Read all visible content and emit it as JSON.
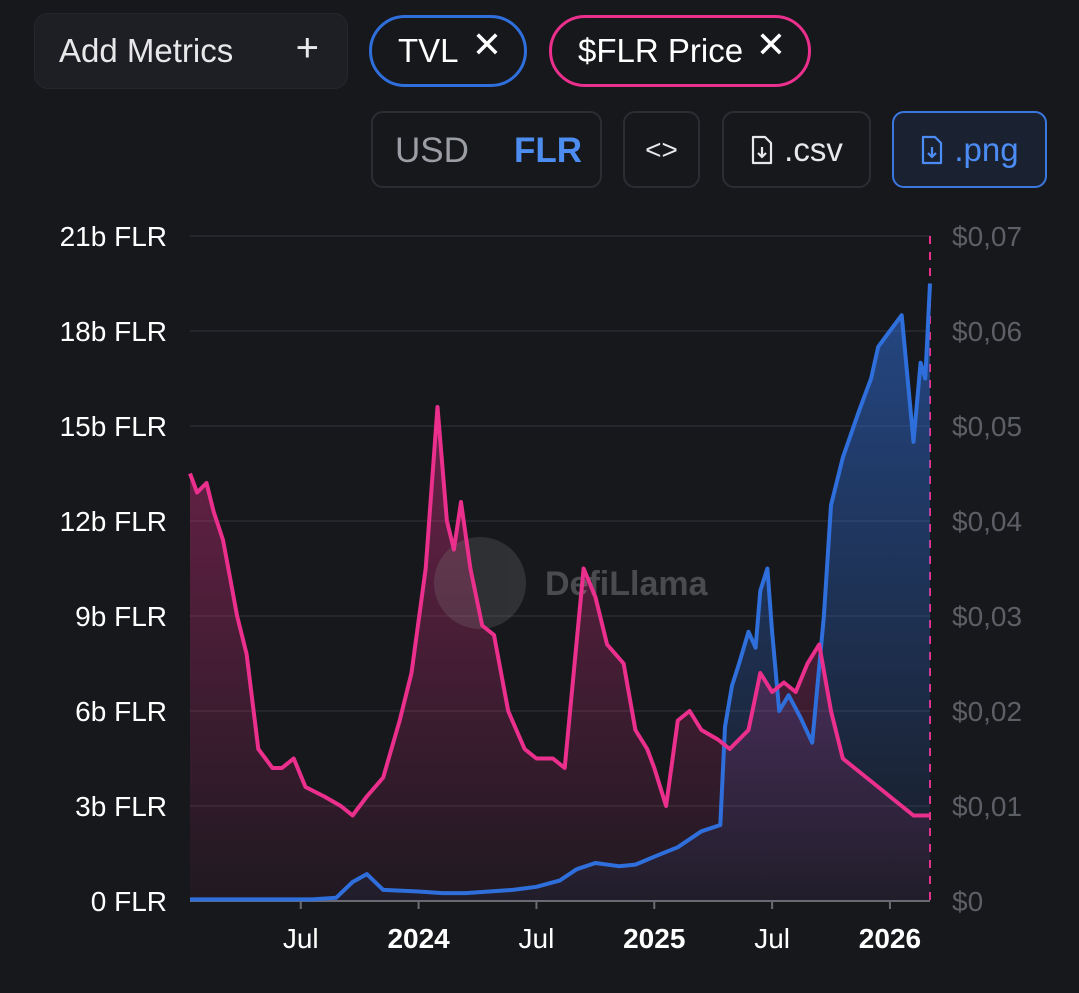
{
  "controls": {
    "add_metrics_label": "Add Metrics",
    "add_icon": "plus-icon",
    "chips": [
      {
        "label": "TVL",
        "color": "#2f6fdc"
      },
      {
        "label": "$FLR Price",
        "color": "#ea2f8c"
      }
    ],
    "currency_options": [
      "USD",
      "FLR"
    ],
    "selected_currency": "FLR",
    "embed_label": "<>",
    "csv_label": ".csv",
    "png_label": ".png"
  },
  "watermark": "DefiLlama",
  "chart_data": {
    "type": "line",
    "title": "",
    "x_ticks": [
      {
        "label": "Jul",
        "date": 2023.5,
        "bold": false
      },
      {
        "label": "2024",
        "date": 2024.0,
        "bold": true
      },
      {
        "label": "Jul",
        "date": 2024.5,
        "bold": false
      },
      {
        "label": "2025",
        "date": 2025.0,
        "bold": true
      },
      {
        "label": "Jul",
        "date": 2025.5,
        "bold": false
      },
      {
        "label": "2026",
        "date": 2026.0,
        "bold": true
      }
    ],
    "xlim": [
      2023.03,
      2026.17
    ],
    "y_left": {
      "label": "TVL",
      "range": [
        0,
        21
      ],
      "unit": "b FLR",
      "ticks": [
        "0 FLR",
        "3b FLR",
        "6b FLR",
        "9b FLR",
        "12b FLR",
        "15b FLR",
        "18b FLR",
        "21b FLR"
      ]
    },
    "y_right": {
      "label": "$FLR Price",
      "range": [
        0,
        0.07
      ],
      "ticks": [
        "$0",
        "$0,01",
        "$0,02",
        "$0,03",
        "$0,04",
        "$0,05",
        "$0,06",
        "$0,07"
      ]
    },
    "series": [
      {
        "name": "TVL",
        "axis": "left",
        "color": "#2f6fdc",
        "x": [
          2023.03,
          2023.2,
          2023.4,
          2023.55,
          2023.65,
          2023.72,
          2023.78,
          2023.85,
          2024.0,
          2024.1,
          2024.2,
          2024.3,
          2024.4,
          2024.5,
          2024.6,
          2024.67,
          2024.75,
          2024.85,
          2024.92,
          2025.0,
          2025.1,
          2025.2,
          2025.28,
          2025.3,
          2025.33,
          2025.36,
          2025.4,
          2025.43,
          2025.45,
          2025.48,
          2025.5,
          2025.53,
          2025.57,
          2025.62,
          2025.67,
          2025.72,
          2025.75,
          2025.8,
          2025.87,
          2025.92,
          2025.95,
          2026.0,
          2026.05,
          2026.1,
          2026.13,
          2026.15,
          2026.17
        ],
        "values": [
          0.05,
          0.05,
          0.05,
          0.05,
          0.1,
          0.6,
          0.85,
          0.35,
          0.3,
          0.25,
          0.25,
          0.3,
          0.35,
          0.45,
          0.65,
          1.0,
          1.2,
          1.1,
          1.15,
          1.4,
          1.7,
          2.2,
          2.4,
          5.5,
          6.8,
          7.5,
          8.5,
          8.0,
          9.8,
          10.5,
          8.5,
          6.0,
          6.5,
          5.8,
          5.0,
          9.0,
          12.5,
          14.0,
          15.5,
          16.5,
          17.5,
          18.0,
          18.5,
          14.5,
          17.0,
          16.5,
          19.5
        ]
      },
      {
        "name": "$FLR Price",
        "axis": "right",
        "color": "#ea2f8c",
        "x": [
          2023.03,
          2023.06,
          2023.1,
          2023.13,
          2023.17,
          2023.2,
          2023.23,
          2023.27,
          2023.32,
          2023.38,
          2023.42,
          2023.47,
          2023.52,
          2023.6,
          2023.67,
          2023.72,
          2023.78,
          2023.85,
          2023.92,
          2023.97,
          2024.03,
          2024.08,
          2024.12,
          2024.15,
          2024.18,
          2024.22,
          2024.27,
          2024.32,
          2024.38,
          2024.45,
          2024.5,
          2024.57,
          2024.62,
          2024.7,
          2024.75,
          2024.8,
          2024.87,
          2024.92,
          2024.97,
          2025.0,
          2025.05,
          2025.1,
          2025.15,
          2025.2,
          2025.27,
          2025.32,
          2025.4,
          2025.45,
          2025.5,
          2025.55,
          2025.6,
          2025.65,
          2025.7,
          2025.75,
          2025.8,
          2025.85,
          2025.9,
          2025.95,
          2026.0,
          2026.05,
          2026.1,
          2026.17
        ],
        "values": [
          0.045,
          0.043,
          0.044,
          0.041,
          0.038,
          0.034,
          0.03,
          0.026,
          0.016,
          0.014,
          0.014,
          0.015,
          0.012,
          0.011,
          0.01,
          0.009,
          0.011,
          0.013,
          0.019,
          0.024,
          0.035,
          0.052,
          0.04,
          0.037,
          0.042,
          0.035,
          0.029,
          0.028,
          0.02,
          0.016,
          0.015,
          0.015,
          0.014,
          0.035,
          0.032,
          0.027,
          0.025,
          0.018,
          0.016,
          0.014,
          0.01,
          0.019,
          0.02,
          0.018,
          0.017,
          0.016,
          0.018,
          0.024,
          0.022,
          0.023,
          0.022,
          0.025,
          0.027,
          0.02,
          0.015,
          0.014,
          0.013,
          0.012,
          0.011,
          0.01,
          0.009,
          0.009
        ]
      }
    ],
    "grid": true,
    "legend": "chips top-left"
  }
}
